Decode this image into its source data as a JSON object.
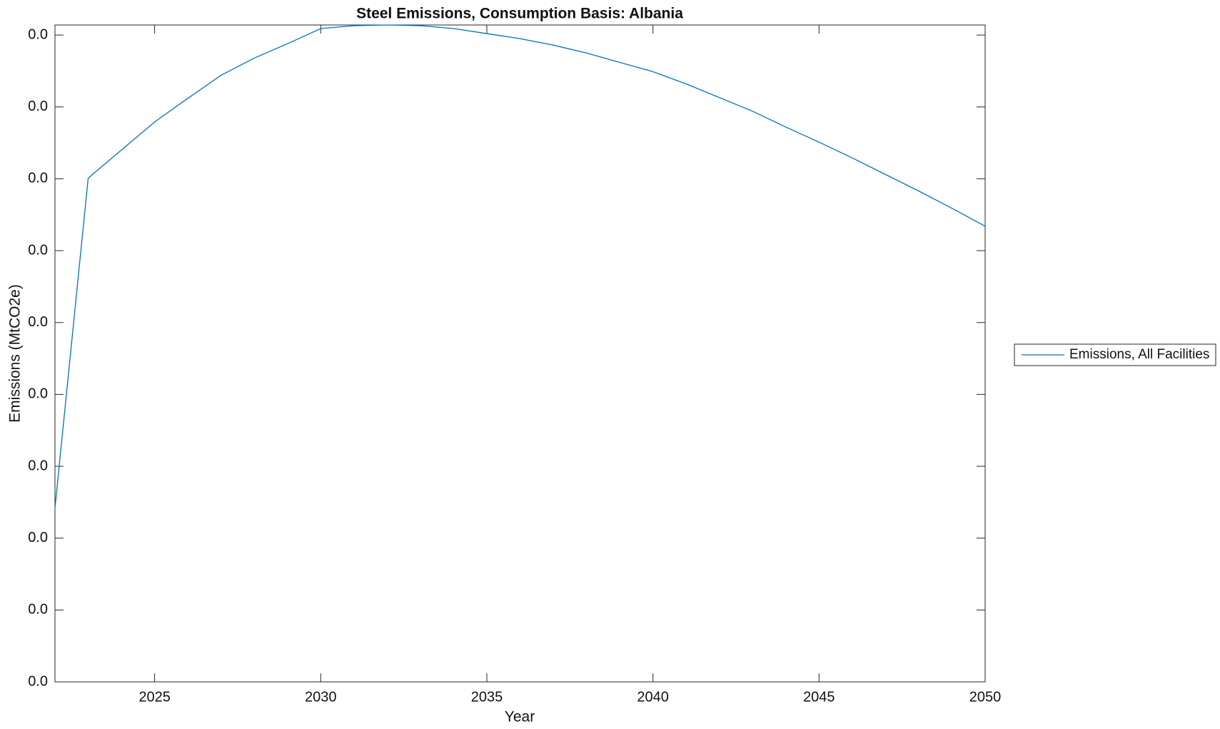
{
  "chart_data": {
    "type": "line",
    "title": "Steel Emissions, Consumption Basis: Albania",
    "x_label": "Year",
    "y_label": "Emissions (MtCO2e)",
    "x": [
      2022,
      2023,
      2024,
      2025,
      2026,
      2027,
      2028,
      2029,
      2030,
      2031,
      2032,
      2033,
      2034,
      2035,
      2036,
      2037,
      2038,
      2039,
      2040,
      2041,
      2042,
      2043,
      2044,
      2045,
      2046,
      2047,
      2048,
      2049,
      2050
    ],
    "series": [
      {
        "name": "Emissions, All Facilities",
        "color": "#0072bd",
        "values": [
          0.00242,
          0.00701,
          0.0074,
          0.00779,
          0.00812,
          0.00844,
          0.00868,
          0.00888,
          0.00909,
          0.00913,
          0.00914,
          0.00913,
          0.00909,
          0.00902,
          0.00895,
          0.00886,
          0.00875,
          0.00862,
          0.00849,
          0.00832,
          0.00813,
          0.00794,
          0.00772,
          0.00751,
          0.00729,
          0.00706,
          0.00683,
          0.00659,
          0.00634
        ]
      }
    ],
    "xlim": [
      2022,
      2050
    ],
    "xticks": [
      2025,
      2030,
      2035,
      2040,
      2045,
      2050
    ],
    "ylim": [
      0,
      0.00914
    ],
    "yticks": [
      {
        "value": 0,
        "label": "0.0"
      },
      {
        "value": 0.001,
        "label": "0.0"
      },
      {
        "value": 0.002,
        "label": "0.0"
      },
      {
        "value": 0.003,
        "label": "0.0"
      },
      {
        "value": 0.004,
        "label": "0.0"
      },
      {
        "value": 0.005,
        "label": "0.0"
      },
      {
        "value": 0.006,
        "label": "0.0"
      },
      {
        "value": 0.007,
        "label": "0.0"
      },
      {
        "value": 0.008,
        "label": "0.0"
      },
      {
        "value": 0.009,
        "label": "0.0"
      }
    ],
    "grid": false,
    "legend": "east-outside"
  }
}
